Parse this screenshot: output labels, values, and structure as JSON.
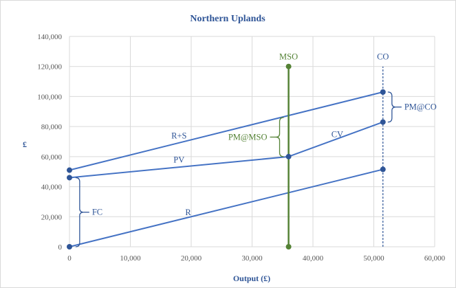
{
  "chart_data": {
    "type": "line",
    "title": "Northern Uplands",
    "xlabel": "Output (£)",
    "ylabel": "£",
    "xlim": [
      0,
      60000
    ],
    "ylim": [
      0,
      140000
    ],
    "x_ticks": [
      0,
      10000,
      20000,
      30000,
      40000,
      50000,
      60000
    ],
    "y_ticks": [
      0,
      20000,
      40000,
      60000,
      80000,
      100000,
      120000,
      140000
    ],
    "x_tick_labels": [
      "0",
      "10,000",
      "20,000",
      "30,000",
      "40,000",
      "50,000",
      "60,000"
    ],
    "y_tick_labels": [
      "0",
      "20,000",
      "40,000",
      "60,000",
      "80,000",
      "100,000",
      "120,000",
      "140,000"
    ],
    "grid": true,
    "series": [
      {
        "name": "R+S",
        "points": [
          [
            0,
            51000
          ],
          [
            51500,
            103000
          ]
        ]
      },
      {
        "name": "PV",
        "points": [
          [
            0,
            46000
          ],
          [
            36000,
            60000
          ]
        ]
      },
      {
        "name": "CV",
        "points": [
          [
            36000,
            60000
          ],
          [
            51500,
            83000
          ]
        ]
      },
      {
        "name": "R",
        "points": [
          [
            0,
            0
          ],
          [
            51500,
            51500
          ]
        ]
      }
    ],
    "vertical_markers": [
      {
        "label": "MSO",
        "x": 36000,
        "y_range": [
          0,
          120000
        ],
        "style": "solid",
        "color": "#548235"
      },
      {
        "label": "CO",
        "x": 51500,
        "y_range": [
          0,
          120000
        ],
        "style": "dashed",
        "color": "#2F5597"
      }
    ],
    "brackets": [
      {
        "label": "FC",
        "x": 1000,
        "y_range": [
          0,
          46000
        ],
        "side": "right",
        "color": "#2F5597"
      },
      {
        "label": "PM@MSO",
        "x": 35200,
        "y_range": [
          60000,
          86000
        ],
        "side": "left",
        "color": "#548235"
      },
      {
        "label": "PM@CO",
        "x": 52300,
        "y_range": [
          83000,
          103000
        ],
        "side": "right",
        "color": "#2F5597"
      }
    ],
    "line_labels": [
      {
        "text": "R+S",
        "x": 18000,
        "y": 72000
      },
      {
        "text": "PV",
        "x": 18000,
        "y": 56000
      },
      {
        "text": "CV",
        "x": 44000,
        "y": 73000
      },
      {
        "text": "R",
        "x": 19500,
        "y": 21000
      }
    ],
    "colors": {
      "line": "#4472C4",
      "text": "#2F5597",
      "mso": "#548235",
      "grid": "#D9D9D9"
    }
  }
}
